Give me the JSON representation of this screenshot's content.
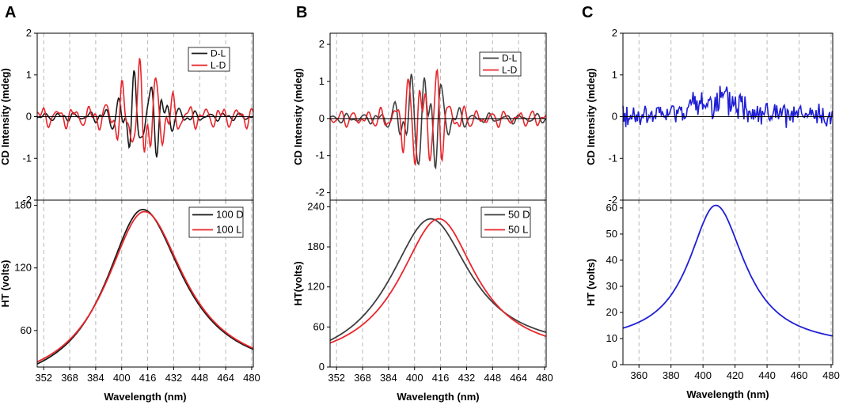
{
  "colors": {
    "black": "#1a1a1a",
    "dark_gray": "#3f3f3f",
    "red": "#e8262b",
    "blue": "#1f1fd6",
    "grid": "#b8b8b8"
  },
  "chart_data": [
    {
      "panel": "A",
      "type": "line",
      "subplot": "top",
      "ylabel": "CD Intensity (mdeg)",
      "xlim": [
        348,
        481
      ],
      "ylim": [
        -2,
        2
      ],
      "yticks": [
        -2,
        -1,
        0,
        1,
        2
      ],
      "xticks": [
        352,
        368,
        384,
        400,
        416,
        432,
        448,
        464,
        480
      ],
      "legend": "top-right",
      "series": [
        {
          "name": "D-L",
          "color": "#1a1a1a",
          "seed": 11,
          "peak": 1.2,
          "center": 413,
          "width": 16,
          "base": 0.12,
          "phase": 0.0
        },
        {
          "name": "L-D",
          "color": "#e8262b",
          "seed": 29,
          "peak": 1.25,
          "center": 413,
          "width": 16,
          "base": 0.3,
          "phase": 3.14
        }
      ]
    },
    {
      "panel": "A",
      "type": "line",
      "subplot": "bottom",
      "xlabel": "Wavelength (nm)",
      "ylabel": "HT (volts)",
      "xlim": [
        348,
        481
      ],
      "ylim": [
        25,
        185
      ],
      "yticks": [
        60,
        120,
        180
      ],
      "xticks": [
        352,
        368,
        384,
        400,
        416,
        432,
        448,
        464,
        480
      ],
      "legend": "top-right",
      "series": [
        {
          "name": "100 D",
          "color": "#1a1a1a",
          "peak_x": 413,
          "peak_y": 176,
          "left_y": 28,
          "right_y": 42,
          "wl": 36,
          "wr": 38
        },
        {
          "name": "100 L",
          "color": "#e8262b",
          "peak_x": 414,
          "peak_y": 174,
          "left_y": 30,
          "right_y": 43,
          "wl": 37,
          "wr": 38
        }
      ]
    },
    {
      "panel": "B",
      "type": "line",
      "subplot": "top",
      "ylabel": "CD Intensity (mdeg)",
      "xlim": [
        348,
        481
      ],
      "ylim": [
        -2.2,
        2.3
      ],
      "yticks": [
        -2,
        -1,
        0,
        1,
        2
      ],
      "xticks": [
        352,
        368,
        384,
        400,
        416,
        432,
        448,
        464,
        480
      ],
      "legend": "top-right",
      "series": [
        {
          "name": "D-L",
          "color": "#3f3f3f",
          "seed": 7,
          "peak": 1.75,
          "center": 406,
          "width": 15,
          "base": 0.15,
          "phase": 0.0
        },
        {
          "name": "L-D",
          "color": "#e8262b",
          "seed": 19,
          "peak": 1.7,
          "center": 406,
          "width": 15,
          "base": 0.25,
          "phase": 3.14
        }
      ]
    },
    {
      "panel": "B",
      "type": "line",
      "subplot": "bottom",
      "xlabel": "Wavelength (nm)",
      "ylabel": "HT(volts)",
      "xlim": [
        348,
        481
      ],
      "ylim": [
        0,
        250
      ],
      "yticks": [
        0,
        60,
        120,
        180,
        240
      ],
      "xticks": [
        352,
        368,
        384,
        400,
        416,
        432,
        448,
        464,
        480
      ],
      "legend": "top-right",
      "series": [
        {
          "name": "50 D",
          "color": "#3f3f3f",
          "peak_x": 410,
          "peak_y": 222,
          "left_y": 40,
          "right_y": 52,
          "wl": 40,
          "wr": 37
        },
        {
          "name": "50 L",
          "color": "#e8262b",
          "peak_x": 415,
          "peak_y": 222,
          "left_y": 36,
          "right_y": 46,
          "wl": 38,
          "wr": 35
        }
      ]
    },
    {
      "panel": "C",
      "type": "line",
      "subplot": "top",
      "ylabel": "CD Intensity (mdeg)",
      "xlim": [
        350,
        481
      ],
      "ylim": [
        -2,
        2
      ],
      "yticks": [
        -2,
        -1,
        0,
        1,
        2
      ],
      "xticks": [
        360,
        380,
        400,
        420,
        440,
        460,
        480
      ],
      "series": [
        {
          "name": "CD",
          "color": "#1f1fd6",
          "seed": 41,
          "noise": true,
          "amp": 0.2,
          "hump": 0.35,
          "center": 410,
          "width": 25
        }
      ]
    },
    {
      "panel": "C",
      "type": "line",
      "subplot": "bottom",
      "xlabel": "Wavelength (nm)",
      "ylabel": "HT (volts)",
      "xlim": [
        350,
        481
      ],
      "ylim": [
        0,
        63
      ],
      "yticks": [
        0,
        10,
        20,
        30,
        40,
        50,
        60
      ],
      "xticks": [
        360,
        380,
        400,
        420,
        440,
        460,
        480
      ],
      "series": [
        {
          "name": "HT",
          "color": "#1f1fd6",
          "peak_x": 408,
          "peak_y": 61,
          "left_y": 14,
          "right_y": 11,
          "wl": 26,
          "wr": 28
        }
      ]
    }
  ]
}
